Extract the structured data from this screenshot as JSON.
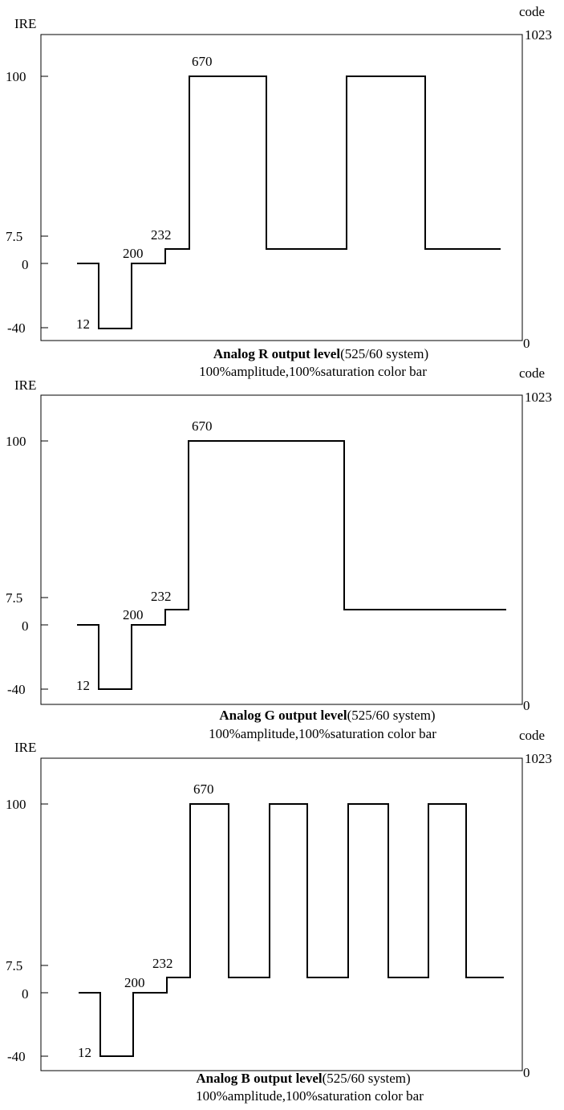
{
  "chart_data": [
    {
      "type": "line",
      "left_axis_label": "IRE",
      "right_axis_label": "code",
      "left_ticks": [
        "100",
        "7.5",
        "0",
        "-40"
      ],
      "right_ticks": [
        "1023",
        "0"
      ],
      "level_labels": [
        "12",
        "200",
        "232",
        "670"
      ],
      "levels": [
        200,
        12,
        200,
        232,
        670,
        232,
        670,
        232
      ],
      "title_bold": "Analog R output level",
      "title_rest": "(525/60 system)",
      "subtitle": "100%amplitude,100%saturation color bar"
    },
    {
      "type": "line",
      "left_axis_label": "IRE",
      "right_axis_label": "code",
      "left_ticks": [
        "100",
        "7.5",
        "0",
        "-40"
      ],
      "right_ticks": [
        "1023",
        "0"
      ],
      "level_labels": [
        "12",
        "200",
        "232",
        "670"
      ],
      "levels": [
        200,
        12,
        200,
        232,
        670,
        232
      ],
      "title_bold": "Analog G output level",
      "title_rest": "(525/60 system)",
      "subtitle": "100%amplitude,100%saturation color bar"
    },
    {
      "type": "line",
      "left_axis_label": "IRE",
      "right_axis_label": "code",
      "left_ticks": [
        "100",
        "7.5",
        "0",
        "-40"
      ],
      "right_ticks": [
        "1023",
        "0"
      ],
      "level_labels": [
        "12",
        "200",
        "232",
        "670"
      ],
      "levels": [
        200,
        12,
        200,
        232,
        670,
        232,
        670,
        232,
        670,
        232,
        670,
        232
      ],
      "title_bold": "Analog B output level",
      "title_rest": "(525/60 system)",
      "subtitle": "100%amplitude,100%saturation color bar"
    }
  ]
}
